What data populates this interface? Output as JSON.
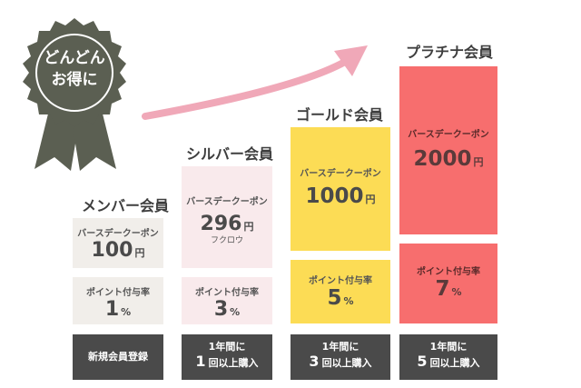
{
  "badge": {
    "line1": "どんどん",
    "line2": "お得に",
    "color": "#5b5f52"
  },
  "tiers": [
    {
      "title": "メンバー会員",
      "coupon_label": "バースデークーポン",
      "coupon_amount": "100",
      "coupon_unit": "円",
      "points_label": "ポイント付与率",
      "points_value": "1",
      "points_unit": "%",
      "req_line1": "新規会員登録",
      "req_count": "",
      "req_line2": "",
      "color": "#f1eeea"
    },
    {
      "title": "シルバー会員",
      "coupon_label": "バースデークーポン",
      "coupon_amount": "296",
      "coupon_unit": "円",
      "coupon_note": "フクロウ",
      "points_label": "ポイント付与率",
      "points_value": "3",
      "points_unit": "%",
      "req_line1": "1年間に",
      "req_count": "1",
      "req_line2": "回以上購入",
      "color": "#f9eaec"
    },
    {
      "title": "ゴールド会員",
      "coupon_label": "バースデークーポン",
      "coupon_amount": "1000",
      "coupon_unit": "円",
      "points_label": "ポイント付与率",
      "points_value": "5",
      "points_unit": "%",
      "req_line1": "1年間に",
      "req_count": "3",
      "req_line2": "回以上購入",
      "color": "#fcdc55"
    },
    {
      "title": "プラチナ会員",
      "coupon_label": "バースデークーポン",
      "coupon_amount": "2000",
      "coupon_unit": "円",
      "points_label": "ポイント付与率",
      "points_value": "7",
      "points_unit": "%",
      "req_line1": "1年間に",
      "req_count": "5",
      "req_line2": "回以上購入",
      "color": "#f76e6e"
    }
  ],
  "arrow_color": "#f0a8b8"
}
